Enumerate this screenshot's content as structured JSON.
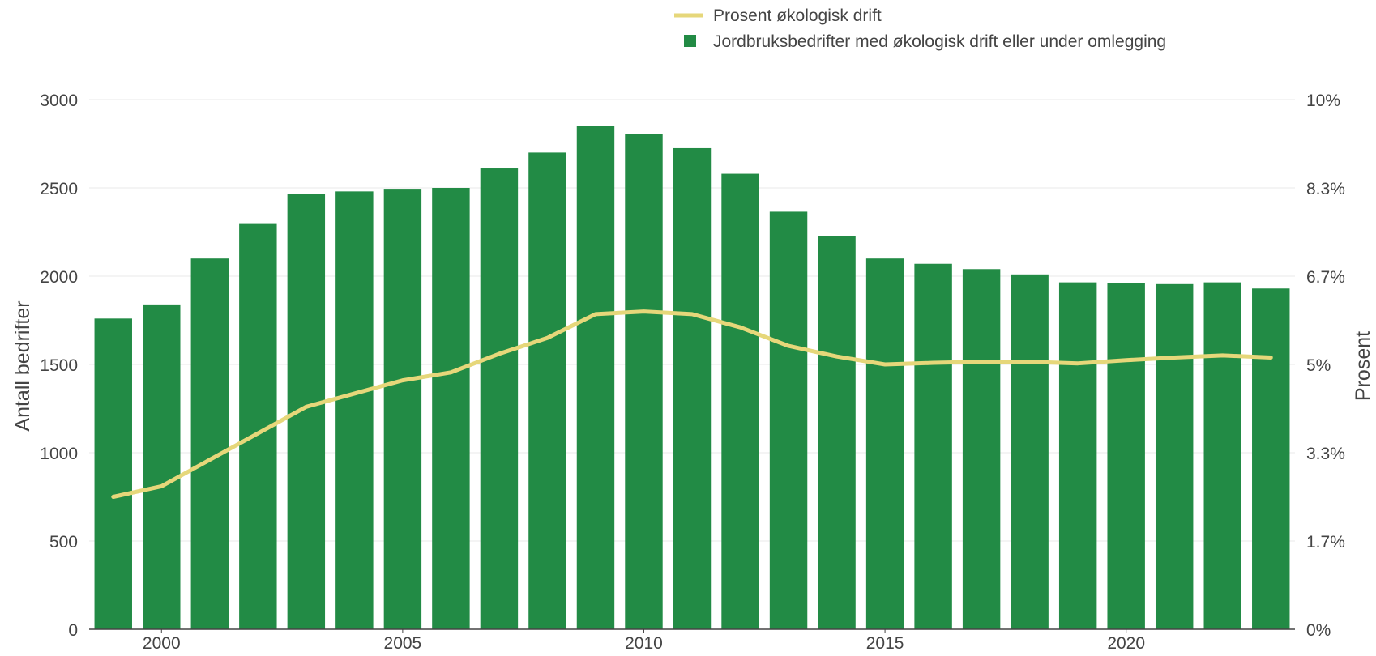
{
  "chart_data": {
    "type": "bar",
    "x": [
      1999,
      2000,
      2001,
      2002,
      2003,
      2004,
      2005,
      2006,
      2007,
      2008,
      2009,
      2010,
      2011,
      2012,
      2013,
      2014,
      2015,
      2016,
      2017,
      2018,
      2019,
      2020,
      2021,
      2022,
      2023
    ],
    "series": [
      {
        "name": "Jordbruksbedrifter med økologisk drift eller under omlegging",
        "type": "bar",
        "axis": "left",
        "values": [
          1760,
          1840,
          2100,
          2300,
          2465,
          2480,
          2495,
          2500,
          2610,
          2700,
          2850,
          2805,
          2725,
          2580,
          2365,
          2225,
          2100,
          2070,
          2040,
          2010,
          1965,
          1960,
          1955,
          1965,
          1930
        ]
      },
      {
        "name": "Prosent økologisk drift",
        "type": "line",
        "axis": "right",
        "values": [
          2.5,
          2.7,
          3.2,
          3.7,
          4.2,
          4.45,
          4.7,
          4.85,
          5.2,
          5.5,
          5.95,
          6.0,
          5.95,
          5.7,
          5.35,
          5.15,
          5.0,
          5.03,
          5.05,
          5.05,
          5.02,
          5.08,
          5.13,
          5.17,
          5.13
        ]
      }
    ],
    "xticks": [
      "2000",
      "2005",
      "2010",
      "2015",
      "2020"
    ],
    "yticks_left": [
      "0",
      "500",
      "1000",
      "1500",
      "2000",
      "2500",
      "3000"
    ],
    "yticks_right": [
      "0%",
      "1.7%",
      "3.3%",
      "5%",
      "6.7%",
      "8.3%",
      "10%"
    ],
    "ylabel_left": "Antall bedrifter",
    "ylabel_right": "Prosent",
    "ylim_left": [
      0,
      3000
    ],
    "ylim_right": [
      0,
      10
    ],
    "xlim": [
      1998.5,
      2023.5
    ],
    "legend_position": "top",
    "grid": true,
    "colors": {
      "bar": "#228b45",
      "line": "#e6d77a",
      "grid": "#e8e8e8",
      "text": "#444444"
    }
  }
}
